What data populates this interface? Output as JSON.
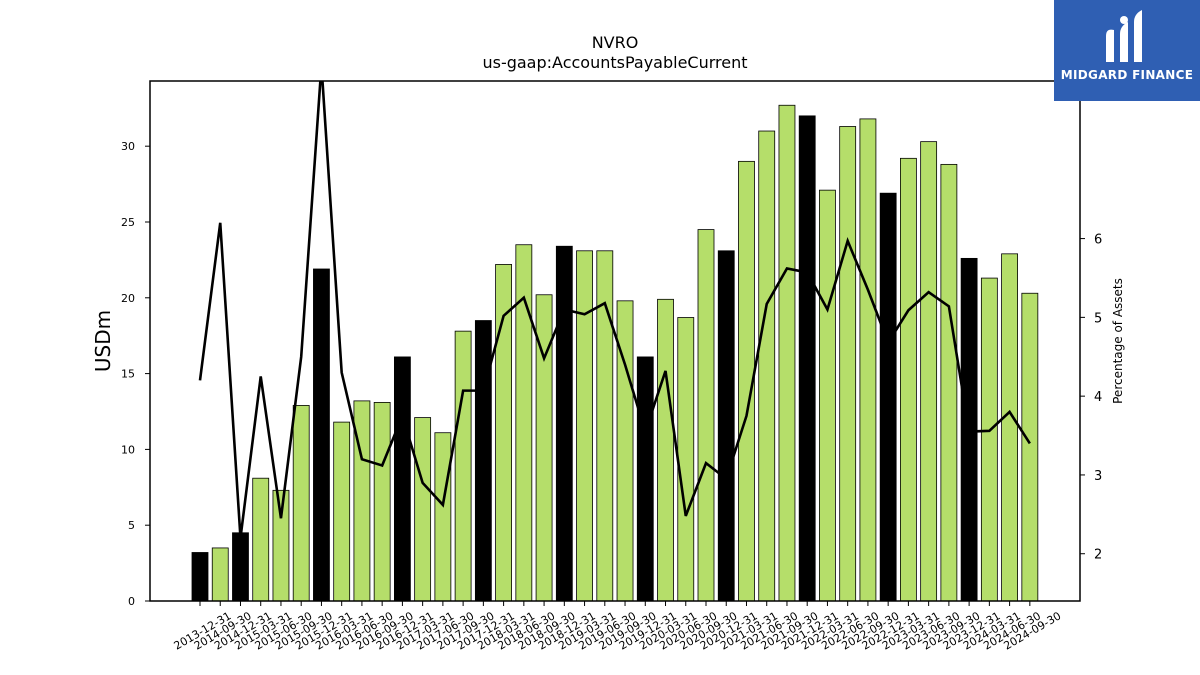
{
  "chart_data": {
    "type": "bar",
    "title": "NVRO",
    "subtitle": "us-gaap:AccountsPayableCurrent",
    "ylabel": "USDm",
    "y2label": "Percentage of Assets",
    "ylim": [
      0,
      34.3
    ],
    "y2lim": [
      1.4,
      8.0
    ],
    "yticks": [
      0,
      5,
      10,
      15,
      20,
      25,
      30
    ],
    "y2ticks": [
      2,
      3,
      4,
      5,
      6
    ],
    "colors": {
      "quarter": "#b5de6a",
      "year_end": "#000000",
      "line": "#000000"
    },
    "categories": [
      "2013-12-31",
      "2014-09-30",
      "2014-12-31",
      "2015-03-31",
      "2015-06-30",
      "2015-09-30",
      "2015-12-31",
      "2016-03-31",
      "2016-06-30",
      "2016-09-30",
      "2016-12-31",
      "2017-03-31",
      "2017-06-30",
      "2017-09-30",
      "2017-12-31",
      "2018-03-31",
      "2018-06-30",
      "2018-09-30",
      "2018-12-31",
      "2019-03-31",
      "2019-06-30",
      "2019-09-30",
      "2019-12-31",
      "2020-03-31",
      "2020-06-30",
      "2020-09-30",
      "2020-12-31",
      "2021-03-31",
      "2021-06-30",
      "2021-09-30",
      "2021-12-31",
      "2022-03-31",
      "2022-06-30",
      "2022-09-30",
      "2022-12-31",
      "2023-03-31",
      "2023-06-30",
      "2023-09-30",
      "2023-12-31",
      "2024-03-31",
      "2024-06-30",
      "2024-09-30"
    ],
    "series": [
      {
        "values": [
          3.2,
          3.5,
          4.5,
          8.1,
          7.3,
          12.9,
          21.9,
          11.8,
          13.2,
          13.1,
          16.1,
          12.1,
          11.1,
          17.8,
          18.5,
          22.2,
          23.5,
          20.2,
          23.4,
          23.1,
          23.1,
          19.8,
          16.1,
          19.9,
          18.7,
          24.5,
          23.1,
          29.0,
          31.0,
          32.7,
          32.0,
          27.1,
          31.3,
          31.8,
          26.9,
          29.2,
          30.3,
          28.8,
          22.6,
          21.3,
          22.9,
          20.3
        ]
      },
      {
        "type": "line",
        "axis": "right",
        "values": [
          4.2,
          6.2,
          2.2,
          4.25,
          2.45,
          4.5,
          8.2,
          4.3,
          3.2,
          3.12,
          3.75,
          2.9,
          2.62,
          4.07,
          4.07,
          5.02,
          5.25,
          4.48,
          5.1,
          5.04,
          5.18,
          4.4,
          3.55,
          4.32,
          2.48,
          3.15,
          2.95,
          3.75,
          5.17,
          5.62,
          5.57,
          5.1,
          5.97,
          5.35,
          4.68,
          5.09,
          5.32,
          5.14,
          3.55,
          3.56,
          3.8,
          3.4
        ]
      }
    ]
  },
  "brand": {
    "name": "MIDGARD FINANCE"
  }
}
